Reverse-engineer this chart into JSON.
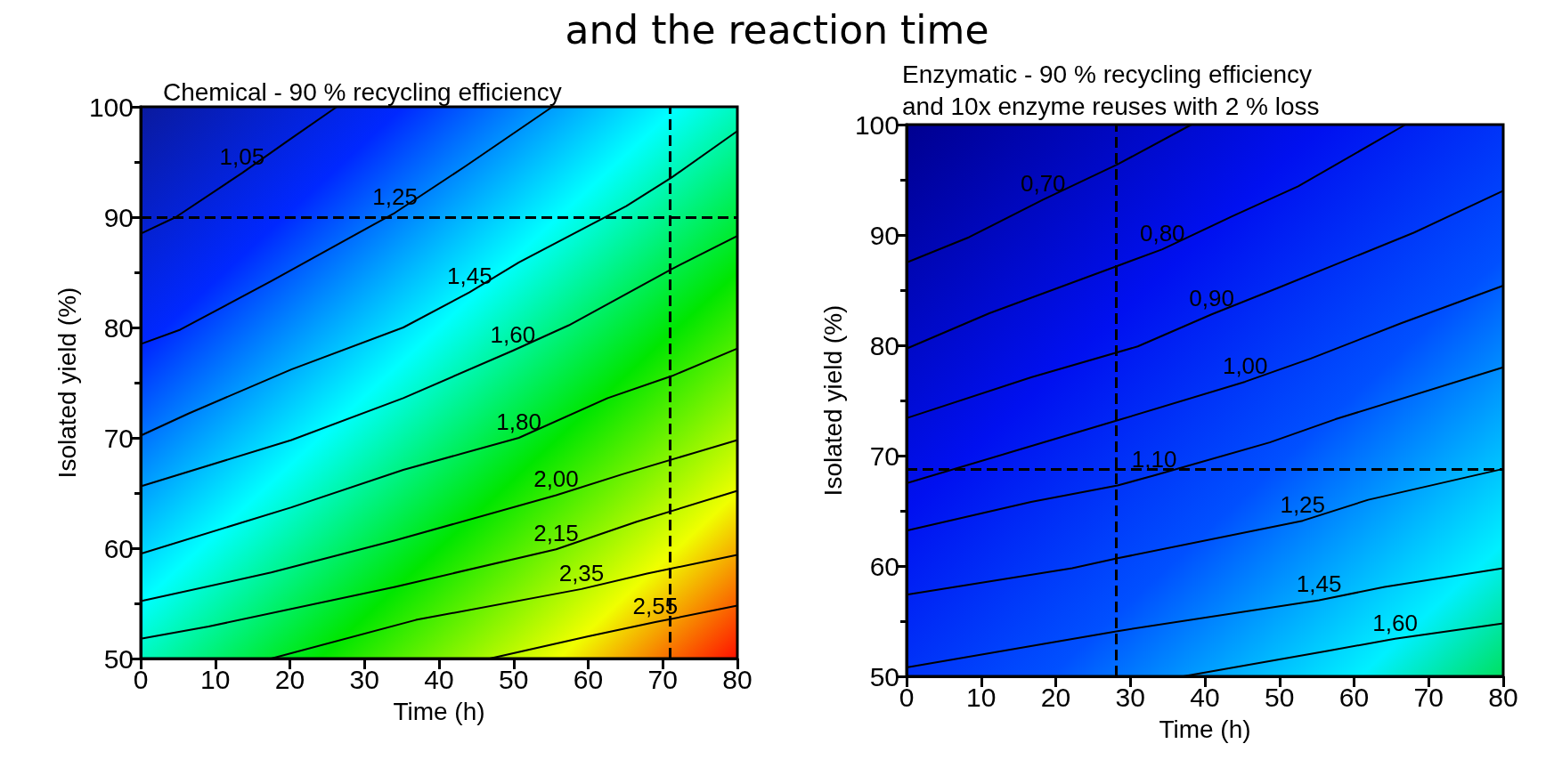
{
  "chart_data": [
    {
      "type": "line",
      "title": "Chemical - 90 % recycling efficiency",
      "xlabel": "Time (h)",
      "ylabel": "Isolated yield (%)",
      "annotations": [
        "and the reaction time"
      ],
      "xlim": [
        0,
        80
      ],
      "xticks": [
        0,
        10,
        20,
        30,
        40,
        50,
        60,
        70,
        80
      ],
      "ylim": [
        50,
        100
      ],
      "yticks": [
        50,
        60,
        70,
        80,
        90,
        100
      ],
      "legend": false,
      "ref_lines": [
        {
          "axis": "y",
          "value": 90,
          "color": "#000000",
          "line_style": "dashed"
        },
        {
          "axis": "x",
          "value": 71,
          "color": "#000000",
          "line_style": "dashed"
        }
      ],
      "series": [
        {
          "name": "1,05",
          "color": "#000000",
          "x": [
            0,
            4.7,
            13.6,
            19.7,
            26.3
          ],
          "values": [
            88.5,
            90.0,
            94.0,
            96.9,
            100
          ]
        },
        {
          "name": "1,25",
          "color": "#000000",
          "x": [
            0,
            5.3,
            17.5,
            34.1,
            43.5,
            55.2
          ],
          "values": [
            78.5,
            79.8,
            84.2,
            90.4,
            94.6,
            100
          ]
        },
        {
          "name": "1,45",
          "color": "#000000",
          "x": [
            0,
            6.4,
            20.2,
            35.2,
            44.1,
            50.7,
            65.1,
            71.2,
            80
          ],
          "values": [
            70.2,
            72.2,
            76.2,
            80.0,
            83.2,
            85.9,
            91.0,
            93.6,
            97.8
          ]
        },
        {
          "name": "1,60",
          "color": "#000000",
          "x": [
            0,
            20.2,
            35.2,
            49.9,
            57.4,
            71.2,
            80
          ],
          "values": [
            65.6,
            69.8,
            73.6,
            77.9,
            80.2,
            85.3,
            88.3
          ]
        },
        {
          "name": "1,80",
          "color": "#000000",
          "x": [
            0,
            20.2,
            35.2,
            50.7,
            62.6,
            71.2,
            80
          ],
          "values": [
            59.5,
            63.7,
            67.1,
            70.0,
            73.6,
            75.6,
            78.1
          ]
        },
        {
          "name": "2,00",
          "color": "#000000",
          "x": [
            0,
            17.5,
            34.1,
            55.7,
            64.6,
            80
          ],
          "values": [
            55.2,
            57.8,
            60.7,
            64.8,
            66.7,
            69.8
          ]
        },
        {
          "name": "2,15",
          "color": "#000000",
          "x": [
            0,
            9.1,
            34.1,
            55.7,
            66.5,
            80
          ],
          "values": [
            51.8,
            52.9,
            56.5,
            59.9,
            62.4,
            65.2
          ]
        },
        {
          "name": "2,35",
          "color": "#000000",
          "x": [
            17.5,
            36.9,
            59.1,
            67.9,
            80
          ],
          "values": [
            50,
            53.5,
            56.3,
            57.7,
            59.4
          ]
        },
        {
          "name": "2,55",
          "color": "#000000",
          "x": [
            46.8,
            59.9,
            69.0,
            80
          ],
          "values": [
            50,
            52.0,
            53.3,
            54.8
          ]
        }
      ]
    },
    {
      "type": "line",
      "title": "Enzymatic - 90 % recycling efficiency\nand 10x enzyme reuses with 2 % loss",
      "xlabel": "Time (h)",
      "ylabel": "Isolated yield (%)",
      "xlim": [
        0,
        80
      ],
      "xticks": [
        0,
        10,
        20,
        30,
        40,
        50,
        60,
        70,
        80
      ],
      "ylim": [
        50,
        100
      ],
      "yticks": [
        50,
        60,
        70,
        80,
        90,
        100
      ],
      "legend": false,
      "ref_lines": [
        {
          "axis": "y",
          "value": 68.8,
          "color": "#000000",
          "line_style": "dashed"
        },
        {
          "axis": "x",
          "value": 28.1,
          "color": "#000000",
          "line_style": "dashed"
        }
      ],
      "series": [
        {
          "name": "0,70",
          "color": "#000000",
          "x": [
            0,
            8.4,
            18.3,
            28.3,
            38.2
          ],
          "values": [
            87.5,
            89.8,
            93.2,
            96.4,
            100
          ]
        },
        {
          "name": "0,80",
          "color": "#000000",
          "x": [
            0,
            11.1,
            28.3,
            34.3,
            43.7,
            52.5,
            66.9
          ],
          "values": [
            79.7,
            82.9,
            87.2,
            88.7,
            91.7,
            94.4,
            100
          ]
        },
        {
          "name": "0,90",
          "color": "#000000",
          "x": [
            0,
            16.7,
            31.0,
            40.9,
            49.8,
            68.0,
            80
          ],
          "values": [
            73.4,
            77.1,
            79.9,
            82.8,
            85.2,
            90.2,
            94.0
          ]
        },
        {
          "name": "1,00",
          "color": "#000000",
          "x": [
            0,
            13.9,
            28.3,
            45.4,
            54.2,
            66.3,
            80
          ],
          "values": [
            67.5,
            70.3,
            73.2,
            76.7,
            78.8,
            82.0,
            85.4
          ]
        },
        {
          "name": "1,10",
          "color": "#000000",
          "x": [
            0,
            16.7,
            28.3,
            33.2,
            48.7,
            57.5,
            80
          ],
          "values": [
            63.2,
            65.8,
            67.3,
            68.2,
            71.2,
            73.3,
            78.0
          ]
        },
        {
          "name": "1,25",
          "color": "#000000",
          "x": [
            0,
            22.2,
            28.3,
            53.1,
            61.9,
            80
          ],
          "values": [
            57.4,
            59.8,
            60.7,
            64.1,
            66.0,
            68.8
          ]
        },
        {
          "name": "1,45",
          "color": "#000000",
          "x": [
            0,
            28.3,
            55.3,
            64.1,
            80
          ],
          "values": [
            50.8,
            54.1,
            56.9,
            58.1,
            59.8
          ]
        },
        {
          "name": "1,60",
          "color": "#000000",
          "x": [
            37.1,
            56.4,
            65.5,
            80
          ],
          "values": [
            50,
            52.3,
            53.4,
            54.8
          ]
        }
      ]
    }
  ]
}
